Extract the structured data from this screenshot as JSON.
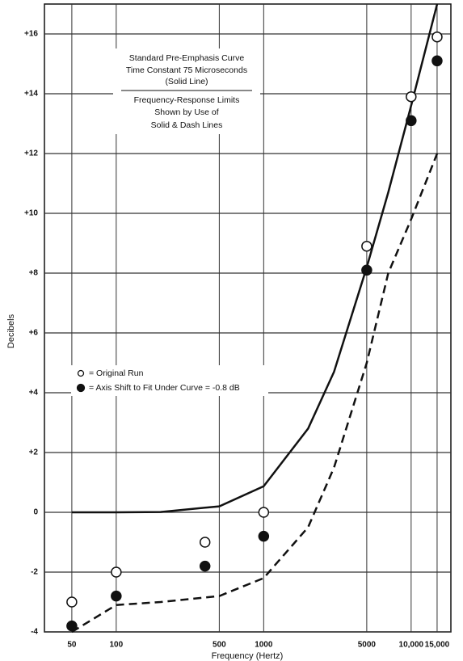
{
  "chart_data": {
    "type": "line",
    "log_x": true,
    "grid": true,
    "color": "#111111",
    "xlabel": "Frequency (Hertz)",
    "ylabel": "Decibels",
    "notes": [
      "Standard Pre-Emphasis Curve",
      "Time Constant 75 Microseconds",
      "(Solid Line)",
      "Frequency-Response Limits",
      "Shown by Use of",
      "Solid & Dash Lines"
    ],
    "xlim": [
      32.6,
      18600
    ],
    "ylim": [
      -4,
      17
    ],
    "xticks": [
      50,
      100,
      500,
      1000,
      5000,
      {
        "value": 10000,
        "label": "10,000"
      },
      {
        "value": 15000,
        "label": "15,000"
      }
    ],
    "yticks": [
      -4,
      -2,
      0,
      {
        "value": 2,
        "label": "+2"
      },
      {
        "value": 4,
        "label": "+4"
      },
      {
        "value": 6,
        "label": "+6"
      },
      {
        "value": 8,
        "label": "+8"
      },
      {
        "value": 10,
        "label": "+10"
      },
      {
        "value": 12,
        "label": "+12"
      },
      {
        "value": 14,
        "label": "+14"
      },
      {
        "value": 16,
        "label": "+16"
      }
    ],
    "curves": [
      {
        "dashed": false,
        "x": [
          50,
          100,
          200,
          500,
          1000,
          2000,
          3000,
          5000,
          7000,
          10000,
          15000
        ],
        "values": [
          0,
          0,
          0.01,
          0.2,
          0.87,
          2.8,
          4.7,
          8.2,
          10.7,
          13.6,
          17
        ]
      },
      {
        "dashed": true,
        "x": [
          50,
          100,
          200,
          500,
          1000,
          2000,
          3000,
          5000,
          7000,
          10000,
          15000
        ],
        "values": [
          -4,
          -3.1,
          -3,
          -2.8,
          -2.2,
          -0.5,
          1.5,
          5,
          8,
          9.8,
          12
        ]
      }
    ],
    "series": [
      {
        "name": "= Original Run",
        "marker": "open",
        "x": [
          50,
          100,
          400,
          1000,
          5000,
          10000,
          15000
        ],
        "values": [
          -3,
          -2,
          -1,
          0,
          8.9,
          13.9,
          15.9
        ]
      },
      {
        "name": "= Axis Shift to Fit Under Curve = -0.8 dB",
        "marker": "filled",
        "x": [
          50,
          100,
          400,
          1000,
          5000,
          10000,
          15000
        ],
        "values": [
          -3.8,
          -2.8,
          -1.8,
          -0.8,
          8.1,
          13.1,
          15.1
        ]
      }
    ]
  }
}
